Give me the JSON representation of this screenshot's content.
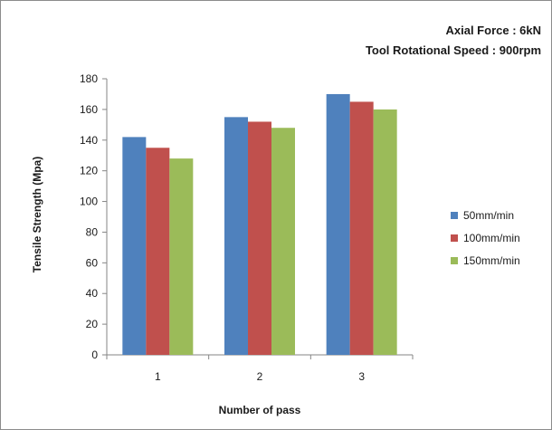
{
  "annotations": [
    "Axial Force : 6kN",
    "Tool Rotational  Speed : 900rpm"
  ],
  "colors": {
    "axis": "#868686",
    "text": "#1a1a1a"
  },
  "chart_data": {
    "type": "bar",
    "title": "",
    "xlabel": "Number of pass",
    "ylabel": "Tensile Strength (Mpa)",
    "categories": [
      "1",
      "2",
      "3"
    ],
    "ylim": [
      0,
      180
    ],
    "yticks": [
      0,
      20,
      40,
      60,
      80,
      100,
      120,
      140,
      160,
      180
    ],
    "grid": false,
    "legend_position": "right",
    "series": [
      {
        "name": "50mm/min",
        "color": "#4f81bd",
        "values": [
          142,
          155,
          170
        ]
      },
      {
        "name": "100mm/min",
        "color": "#c0504d",
        "values": [
          135,
          152,
          165
        ]
      },
      {
        "name": "150mm/min",
        "color": "#9bbb59",
        "values": [
          128,
          148,
          160
        ]
      }
    ]
  }
}
